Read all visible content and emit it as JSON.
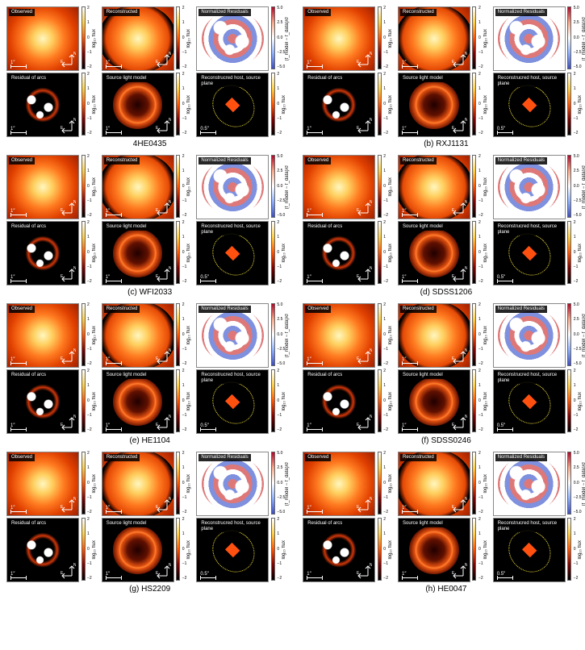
{
  "panel_labels": {
    "observed": "Observed",
    "reconstructed": "Reconstructed",
    "residuals": "Normalized Residuals",
    "residual_arcs": "Residual of arcs",
    "source_light": "Source light model",
    "host": "Reconstrucred host, source plane"
  },
  "colorbar_labels": {
    "logflux": "log₁₀ flux",
    "normres": "(f_model − f_data)/σ"
  },
  "flux_ticks": [
    "2",
    "1",
    "0",
    "−1",
    "−2"
  ],
  "res_ticks": [
    "5.0",
    "2.5",
    "0.0",
    "−2.5",
    "−5.0"
  ],
  "scalebars": {
    "one": "1″",
    "half": "0.5″"
  },
  "compass": {
    "n": "N",
    "e": "E"
  },
  "palette": {
    "afmhot": {
      "low": "#000000",
      "high": "#ffffff"
    },
    "coolwarm": {
      "low": "#3b4cc0",
      "high": "#b40426"
    }
  },
  "systems": [
    {
      "id": "a",
      "caption": "4HE0435",
      "label": "4HE0435"
    },
    {
      "id": "b",
      "caption": "(b) RXJ1131",
      "label": "RXJ1131"
    },
    {
      "id": "c",
      "caption": "(c) WFI2033",
      "label": "WFI2033"
    },
    {
      "id": "d",
      "caption": "(d) SDSS1206",
      "label": "SDSS1206"
    },
    {
      "id": "e",
      "caption": "(e) HE1104",
      "label": "HE1104"
    },
    {
      "id": "f",
      "caption": "(f) SDSS0246",
      "label": "SDSS0246"
    },
    {
      "id": "g",
      "caption": "(g) HS2209",
      "label": "HS2209"
    },
    {
      "id": "h",
      "caption": "(h) HE0047",
      "label": "HE0047"
    }
  ]
}
